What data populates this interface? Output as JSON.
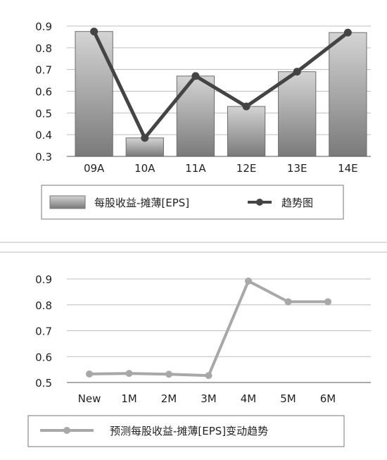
{
  "chart_data": [
    {
      "type": "bar",
      "categories": [
        "09A",
        "10A",
        "11A",
        "12E",
        "13E",
        "14E"
      ],
      "series": [
        {
          "name": "每股收益-摊薄[EPS]",
          "values": [
            0.875,
            0.385,
            0.67,
            0.53,
            0.69,
            0.87
          ]
        },
        {
          "name": "趋势图",
          "type": "line",
          "values": [
            0.875,
            0.385,
            0.67,
            0.53,
            0.69,
            0.87
          ]
        }
      ],
      "ylim": [
        0.3,
        0.9
      ],
      "yticks": [
        "0.3",
        "0.4",
        "0.5",
        "0.6",
        "0.7",
        "0.8",
        "0.9"
      ],
      "grid": true,
      "legend": "bottom"
    },
    {
      "type": "line",
      "categories": [
        "New",
        "1M",
        "2M",
        "3M",
        "4M",
        "5M",
        "6M"
      ],
      "series": [
        {
          "name": "预测每股收益-摊薄[EPS]变动趋势",
          "values": [
            0.533,
            0.535,
            0.532,
            0.527,
            0.892,
            0.812,
            0.812
          ]
        }
      ],
      "ylim": [
        0.5,
        0.9
      ],
      "yticks": [
        "0.5",
        "0.6",
        "0.7",
        "0.8",
        "0.9"
      ],
      "grid": true,
      "legend": "bottom"
    }
  ],
  "colors": {
    "bar_top": "#d2d2d2",
    "bar_bottom": "#7c7c7c",
    "line1": "#444444",
    "line2": "#a8a8a8",
    "grid": "#bdbdbd",
    "axis": "#555555"
  }
}
